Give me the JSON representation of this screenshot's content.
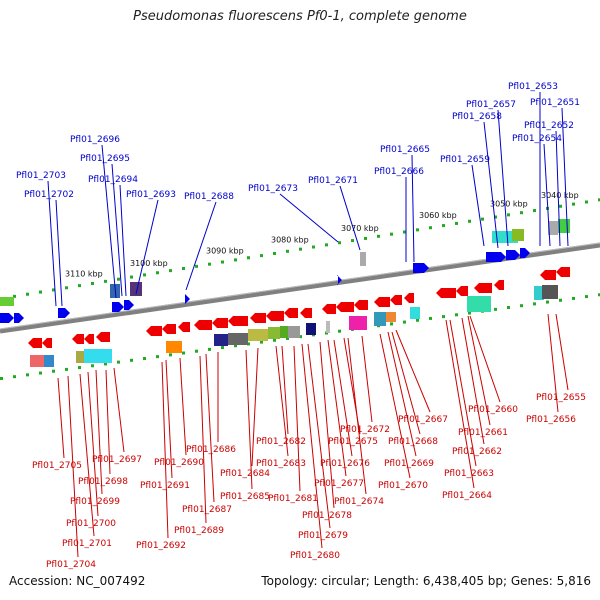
{
  "header": {
    "title": "Pseudomonas fluorescens Pf0-1, complete genome"
  },
  "footer": {
    "accession": "Accession: NC_007492",
    "summary": "Topology: circular; Length: 6,438,405 bp; Genes: 5,816"
  },
  "colors": {
    "forward_gene": "#0000ee",
    "reverse_gene": "#ee0000",
    "forward_label": "#0000cc",
    "reverse_label": "#cc0000",
    "backbone": "#808080",
    "tick": "#22aa22"
  },
  "scale": {
    "ticks": [
      "3040 kbp",
      "3050 kbp",
      "3060 kbp",
      "3070 kbp",
      "3080 kbp",
      "3090 kbp",
      "3100 kbp",
      "3110 kbp"
    ]
  },
  "genes_forward": [
    "Pfl01_2653",
    "Pfl01_2657",
    "Pfl01_2651",
    "Pfl01_2658",
    "Pfl01_2652",
    "Pfl01_2654",
    "Pfl01_2665",
    "Pfl01_2659",
    "Pfl01_2666",
    "Pfl01_2696",
    "Pfl01_2695",
    "Pfl01_2703",
    "Pfl01_2694",
    "Pfl01_2671",
    "Pfl01_2673",
    "Pfl01_2702",
    "Pfl01_2693",
    "Pfl01_2688"
  ],
  "genes_reverse": [
    "Pfl01_2655",
    "Pfl01_2656",
    "Pfl01_2660",
    "Pfl01_2661",
    "Pfl01_2662",
    "Pfl01_2663",
    "Pfl01_2664",
    "Pfl01_2667",
    "Pfl01_2668",
    "Pfl01_2669",
    "Pfl01_2670",
    "Pfl01_2672",
    "Pfl01_2674",
    "Pfl01_2675",
    "Pfl01_2676",
    "Pfl01_2677",
    "Pfl01_2678",
    "Pfl01_2679",
    "Pfl01_2680",
    "Pfl01_2681",
    "Pfl01_2682",
    "Pfl01_2683",
    "Pfl01_2684",
    "Pfl01_2685",
    "Pfl01_2686",
    "Pfl01_2687",
    "Pfl01_2689",
    "Pfl01_2690",
    "Pfl01_2691",
    "Pfl01_2692",
    "Pfl01_2697",
    "Pfl01_2698",
    "Pfl01_2699",
    "Pfl01_2700",
    "Pfl01_2701",
    "Pfl01_2704",
    "Pfl01_2705"
  ]
}
